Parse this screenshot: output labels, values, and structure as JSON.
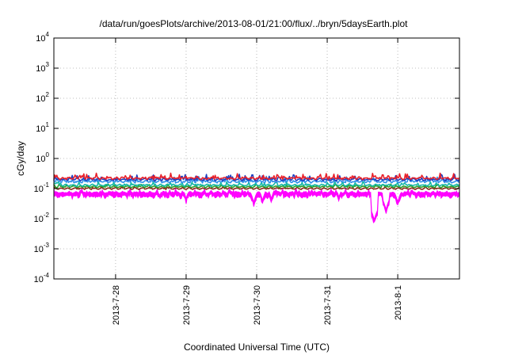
{
  "chart_data": {
    "type": "line",
    "title": "/data/run/goesPlots/archive/2013-08-01/21:00/flux/../bryn/5daysEarth.plot",
    "xlabel": "Coordinated Universal Time (UTC)",
    "ylabel": "cGy/day",
    "yscale": "log",
    "ylim": [
      0.0001,
      10000
    ],
    "xlim": [
      "2013-07-27 03:00",
      "2013-08-01 21:00"
    ],
    "grid": true,
    "legend": "none",
    "y_ticks": [
      {
        "base": "10",
        "exp": "-4",
        "value": 0.0001
      },
      {
        "base": "10",
        "exp": "-3",
        "value": 0.001
      },
      {
        "base": "10",
        "exp": "-2",
        "value": 0.01
      },
      {
        "base": "10",
        "exp": "-1",
        "value": 0.1
      },
      {
        "base": "10",
        "exp": "0",
        "value": 1
      },
      {
        "base": "10",
        "exp": "1",
        "value": 10
      },
      {
        "base": "10",
        "exp": "2",
        "value": 100
      },
      {
        "base": "10",
        "exp": "3",
        "value": 1000
      },
      {
        "base": "10",
        "exp": "4",
        "value": 10000
      }
    ],
    "x_ticks": [
      {
        "label": "2013-7-28",
        "time": "2013-07-28 00:00"
      },
      {
        "label": "2013-7-29",
        "time": "2013-07-29 00:00"
      },
      {
        "label": "2013-7-30",
        "time": "2013-07-30 00:00"
      },
      {
        "label": "2013-7-31",
        "time": "2013-07-31 00:00"
      },
      {
        "label": "2013-8-1",
        "time": "2013-08-01 00:00"
      }
    ],
    "series": [
      {
        "color": "#e8202a",
        "base": 0.22,
        "amp": 0.28,
        "dips": []
      },
      {
        "color": "#1f3fbf",
        "base": 0.2,
        "amp": 0.3,
        "dips": []
      },
      {
        "color": "#2f8fe8",
        "base": 0.17,
        "amp": 0.3,
        "dips": []
      },
      {
        "color": "#16b8a8",
        "base": 0.13,
        "amp": 0.18,
        "dips": []
      },
      {
        "color": "#2aa02a",
        "base": 0.115,
        "amp": 0.12,
        "dips": []
      },
      {
        "color": "#8a2a1a",
        "base": 0.1,
        "amp": 0.1,
        "dips": []
      },
      {
        "color": "#ff00ff",
        "base": 0.075,
        "amp": 0.22,
        "fill": true,
        "dips": [
          {
            "time": "2013-07-28 15:00",
            "value": 0.055
          },
          {
            "time": "2013-07-29 00:00",
            "value": 0.045
          },
          {
            "time": "2013-07-29 23:00",
            "value": 0.035
          },
          {
            "time": "2013-07-30 02:00",
            "value": 0.04
          },
          {
            "time": "2013-07-30 05:00",
            "value": 0.045
          },
          {
            "time": "2013-07-31 04:00",
            "value": 0.05
          },
          {
            "time": "2013-07-31 16:00",
            "value": 0.009
          },
          {
            "time": "2013-07-31 20:00",
            "value": 0.02
          },
          {
            "time": "2013-08-01 00:00",
            "value": 0.035
          }
        ]
      }
    ]
  }
}
